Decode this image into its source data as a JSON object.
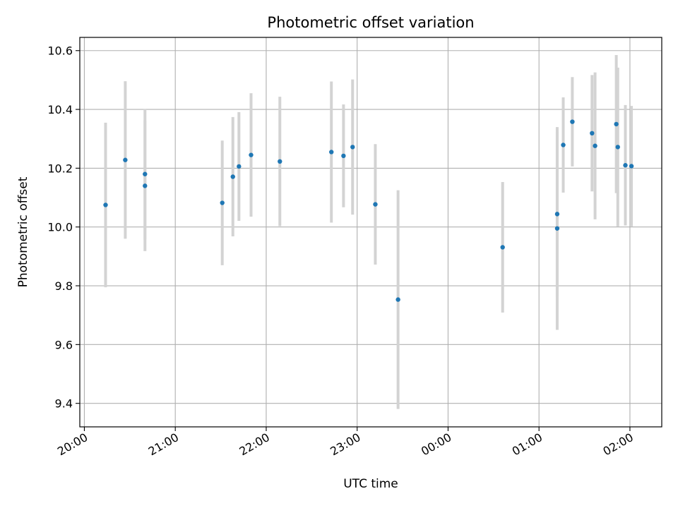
{
  "chart_data": {
    "type": "scatter",
    "title": "Photometric offset variation",
    "xlabel": "UTC time",
    "ylabel": "Photometric offset",
    "x_ticks": [
      "20:00",
      "21:00",
      "22:00",
      "23:00",
      "00:00",
      "01:00",
      "02:00"
    ],
    "y_ticks": [
      "9.4",
      "9.6",
      "9.8",
      "10.0",
      "10.2",
      "10.4",
      "10.6"
    ],
    "xlim": [
      "19:57",
      "02:21"
    ],
    "ylim": [
      9.32,
      10.645
    ],
    "grid": true,
    "marker_color": "#1f77b4",
    "errorbar_color": "#d3d3d3",
    "points": [
      {
        "x": "20:14",
        "y": 10.075,
        "err": 0.28
      },
      {
        "x": "20:27",
        "y": 10.228,
        "err": 0.268
      },
      {
        "x": "20:40",
        "y": 10.18,
        "err": 0.222
      },
      {
        "x": "20:40",
        "y": 10.14,
        "err": 0.222
      },
      {
        "x": "21:31",
        "y": 10.082,
        "err": 0.212
      },
      {
        "x": "21:38",
        "y": 10.171,
        "err": 0.203
      },
      {
        "x": "21:42",
        "y": 10.206,
        "err": 0.185
      },
      {
        "x": "21:50",
        "y": 10.245,
        "err": 0.21
      },
      {
        "x": "22:09",
        "y": 10.223,
        "err": 0.22
      },
      {
        "x": "22:43",
        "y": 10.255,
        "err": 0.24
      },
      {
        "x": "22:51",
        "y": 10.242,
        "err": 0.175
      },
      {
        "x": "22:57",
        "y": 10.272,
        "err": 0.23
      },
      {
        "x": "23:12",
        "y": 10.077,
        "err": 0.205
      },
      {
        "x": "23:27",
        "y": 9.753,
        "err": 0.372
      },
      {
        "x": "00:36",
        "y": 9.931,
        "err": 0.222
      },
      {
        "x": "01:12",
        "y": 10.044,
        "err": 0.28
      },
      {
        "x": "01:12",
        "y": 9.995,
        "err": 0.345
      },
      {
        "x": "01:16",
        "y": 10.279,
        "err": 0.162
      },
      {
        "x": "01:22",
        "y": 10.358,
        "err": 0.152
      },
      {
        "x": "01:35",
        "y": 10.319,
        "err": 0.198
      },
      {
        "x": "01:37",
        "y": 10.276,
        "err": 0.25
      },
      {
        "x": "01:51",
        "y": 10.35,
        "err": 0.235
      },
      {
        "x": "01:52",
        "y": 10.272,
        "err": 0.27
      },
      {
        "x": "01:57",
        "y": 10.21,
        "err": 0.205
      },
      {
        "x": "02:01",
        "y": 10.207,
        "err": 0.205
      }
    ]
  }
}
